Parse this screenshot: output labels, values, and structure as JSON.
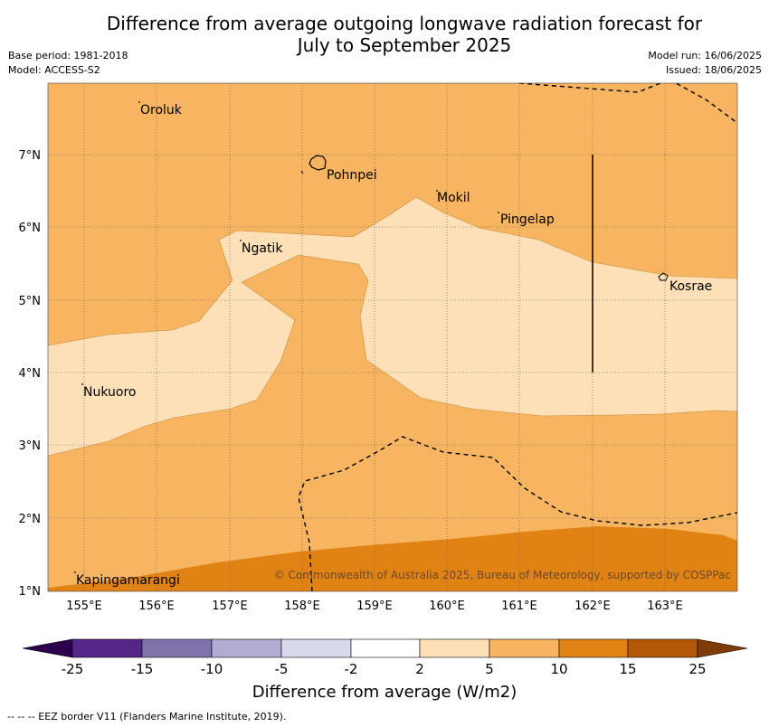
{
  "header": {
    "title_line1": "Difference from average outgoing longwave radiation forecast for",
    "title_line2": "July to September 2025",
    "base_period": "Base period: 1981-2018",
    "model": "Model: ACCESS-S2",
    "model_run": "Model run: 16/06/2025",
    "issued": "Issued: 18/06/2025"
  },
  "map": {
    "x_ticks": [
      "155°E",
      "156°E",
      "157°E",
      "158°E",
      "159°E",
      "160°E",
      "161°E",
      "162°E",
      "163°E"
    ],
    "y_ticks": [
      "7°N",
      "6°N",
      "5°N",
      "4°N",
      "3°N",
      "2°N",
      "1°N"
    ],
    "places": {
      "oroluk": "Oroluk",
      "pohnpei": "Pohnpei",
      "mokil": "Mokil",
      "pingelap": "Pingelap",
      "ngatik": "Ngatik",
      "kosrae": "Kosrae",
      "nukuoro": "Nukuoro",
      "kapingamarangi": "Kapingamarangi"
    },
    "copyright": "© Commonwealth of Australia 2025, Bureau of Meteorology, supported by COSPPac",
    "colors": {
      "class_2_5": "#fde0b7",
      "class_5_10": "#f8b561",
      "class_10_15": "#e08214",
      "eez_line": "#000000"
    }
  },
  "colorbar": {
    "labels": [
      "-25",
      "-15",
      "-10",
      "-5",
      "-2",
      "2",
      "5",
      "10",
      "15",
      "25"
    ],
    "colors": [
      "#2d004b",
      "#542788",
      "#8073ac",
      "#b2abd2",
      "#d8daeb",
      "#ffffff",
      "#fde0b7",
      "#f8b561",
      "#e08214",
      "#b35806",
      "#7f3b08"
    ],
    "title": "Difference from average (W/m2)"
  },
  "footer": {
    "eez_note": "--  --  -- EEZ border V11 (Flanders Marine Institute, 2019)."
  }
}
